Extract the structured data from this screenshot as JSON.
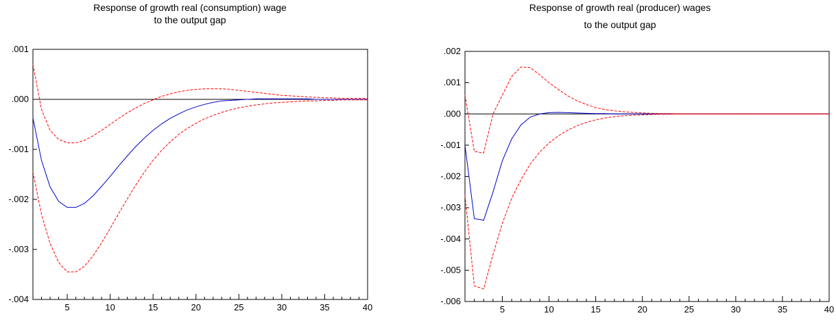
{
  "chart_data": [
    {
      "type": "line",
      "title": [
        "Response of growth real (consumption) wage",
        "to the output gap"
      ],
      "xlim": [
        1,
        40
      ],
      "ylim": [
        -0.004,
        0.001
      ],
      "xticks": [
        5,
        10,
        15,
        20,
        25,
        30,
        35,
        40
      ],
      "xtick_labels": [
        "5",
        "10",
        "15",
        "20",
        "25",
        "30",
        "35",
        "40"
      ],
      "yticks": [
        0.001,
        0.0,
        -0.001,
        -0.002,
        -0.003,
        -0.004
      ],
      "ytick_labels": [
        ".001",
        ".000",
        "-.001",
        "-.002",
        "-.003",
        "-.004"
      ],
      "grid": false,
      "zero_line": true,
      "x": [
        1,
        2,
        3,
        4,
        5,
        6,
        7,
        8,
        9,
        10,
        11,
        12,
        13,
        14,
        15,
        16,
        17,
        18,
        19,
        20,
        21,
        22,
        23,
        24,
        25,
        26,
        27,
        28,
        29,
        30,
        31,
        32,
        33,
        34,
        35,
        36,
        37,
        38,
        39,
        40
      ],
      "series": [
        {
          "style": "solid",
          "color": "#0000cc",
          "values": [
            -0.00037,
            -0.00122,
            -0.00175,
            -0.00204,
            -0.00216,
            -0.00216,
            -0.00208,
            -0.00193,
            -0.00174,
            -0.00154,
            -0.00133,
            -0.00113,
            -0.00094,
            -0.00077,
            -0.00062,
            -0.00049,
            -0.00038,
            -0.00029,
            -0.00021,
            -0.00015,
            -0.0001,
            -6e-05,
            -3e-05,
            -2e-05,
            -1e-05,
            0.0,
            1e-05,
            1e-05,
            1e-05,
            1e-05,
            1e-05,
            1e-05,
            1e-05,
            0.0,
            0.0,
            0.0,
            0.0,
            0.0,
            0.0,
            0.0
          ]
        },
        {
          "style": "dashed",
          "color": "#ff0000",
          "values": [
            0.0007,
            -0.0002,
            -0.00062,
            -0.0008,
            -0.00087,
            -0.00087,
            -0.00082,
            -0.00073,
            -0.00062,
            -0.0005,
            -0.00038,
            -0.00027,
            -0.00017,
            -8e-05,
            -1e-05,
            6e-05,
            0.00011,
            0.00015,
            0.00018,
            0.0002,
            0.00021,
            0.00021,
            0.00021,
            0.0002,
            0.00018,
            0.00016,
            0.00014,
            0.00012,
            0.0001,
            8e-05,
            7e-05,
            6e-05,
            5e-05,
            4e-05,
            3e-05,
            3e-05,
            2e-05,
            2e-05,
            2e-05,
            2e-05
          ]
        },
        {
          "style": "dashed",
          "color": "#ff0000",
          "values": [
            -0.00145,
            -0.0023,
            -0.00288,
            -0.00326,
            -0.00345,
            -0.00345,
            -0.00334,
            -0.00313,
            -0.00287,
            -0.00258,
            -0.00228,
            -0.00199,
            -0.00171,
            -0.00145,
            -0.00122,
            -0.00102,
            -0.00085,
            -0.0007,
            -0.00058,
            -0.00048,
            -0.00039,
            -0.00032,
            -0.00026,
            -0.00021,
            -0.00017,
            -0.00014,
            -0.00011,
            -9e-05,
            -7e-05,
            -6e-05,
            -5e-05,
            -4e-05,
            -3e-05,
            -3e-05,
            -2e-05,
            -2e-05,
            -1e-05,
            -1e-05,
            -1e-05,
            -1e-05
          ]
        }
      ]
    },
    {
      "type": "line",
      "title": [
        "Response of growth real (producer) wages",
        "to the output gap"
      ],
      "xlim": [
        1,
        40
      ],
      "ylim": [
        -0.006,
        0.002
      ],
      "xticks": [
        5,
        10,
        15,
        20,
        25,
        30,
        35,
        40
      ],
      "xtick_labels": [
        "5",
        "10",
        "15",
        "20",
        "25",
        "30",
        "35",
        "40"
      ],
      "yticks": [
        0.002,
        0.001,
        0.0,
        -0.001,
        -0.002,
        -0.003,
        -0.004,
        -0.005,
        -0.006
      ],
      "ytick_labels": [
        ".002",
        ".001",
        ".000",
        "-.001",
        "-.002",
        "-.003",
        "-.004",
        "-.005",
        "-.006"
      ],
      "grid": false,
      "zero_line": true,
      "x": [
        1,
        2,
        3,
        4,
        5,
        6,
        7,
        8,
        9,
        10,
        11,
        12,
        13,
        14,
        15,
        16,
        17,
        18,
        19,
        20,
        21,
        22,
        23,
        24,
        25,
        26,
        27,
        28,
        29,
        30,
        31,
        32,
        33,
        34,
        35,
        36,
        37,
        38,
        39,
        40
      ],
      "series": [
        {
          "style": "solid",
          "color": "#0000cc",
          "values": [
            -0.001,
            -0.00335,
            -0.0034,
            -0.0025,
            -0.0015,
            -0.0008,
            -0.00035,
            -0.0001,
            0.0,
            4e-05,
            5e-05,
            4e-05,
            3e-05,
            2e-05,
            1e-05,
            1e-05,
            0.0,
            0.0,
            0.0,
            0.0,
            0.0,
            0.0,
            0.0,
            0.0,
            0.0,
            0.0,
            0.0,
            0.0,
            0.0,
            0.0,
            0.0,
            0.0,
            0.0,
            0.0,
            0.0,
            0.0,
            0.0,
            0.0,
            0.0,
            0.0
          ]
        },
        {
          "style": "dashed",
          "color": "#ff0000",
          "values": [
            0.0006,
            -0.0012,
            -0.00125,
            0.0,
            0.0006,
            0.0012,
            0.0015,
            0.00148,
            0.00125,
            0.001,
            0.00078,
            0.00058,
            0.00042,
            0.0003,
            0.0002,
            0.00014,
            0.0001,
            7e-05,
            5e-05,
            3e-05,
            2e-05,
            1e-05,
            1e-05,
            0.0,
            0.0,
            0.0,
            0.0,
            0.0,
            0.0,
            0.0,
            0.0,
            0.0,
            0.0,
            0.0,
            0.0,
            0.0,
            0.0,
            0.0,
            0.0,
            0.0
          ]
        },
        {
          "style": "dashed",
          "color": "#ff0000",
          "values": [
            -0.0026,
            -0.0055,
            -0.0056,
            -0.0045,
            -0.0035,
            -0.0027,
            -0.0021,
            -0.0016,
            -0.00122,
            -0.00093,
            -0.0007,
            -0.00052,
            -0.00038,
            -0.00027,
            -0.00019,
            -0.00013,
            -9e-05,
            -6e-05,
            -4e-05,
            -3e-05,
            -2e-05,
            -1e-05,
            -1e-05,
            0.0,
            0.0,
            0.0,
            0.0,
            0.0,
            0.0,
            0.0,
            0.0,
            0.0,
            0.0,
            0.0,
            0.0,
            0.0,
            0.0,
            0.0,
            0.0,
            0.0
          ]
        }
      ]
    }
  ]
}
